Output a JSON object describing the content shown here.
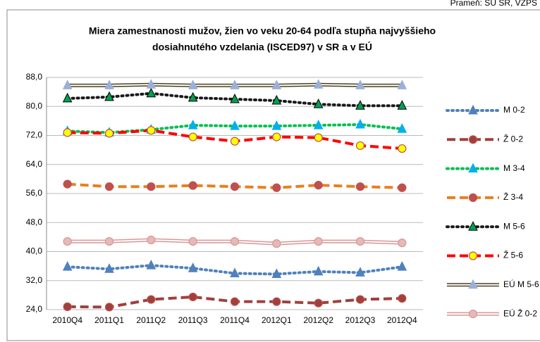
{
  "source": "Prameň: ŠÚ SR, VZPS",
  "chart_data": {
    "type": "line",
    "title": [
      "Miera zamestnanosti  mužov, žien vo veku 20-64  podľa stupňa  najvyššieho",
      "dosiahnutého vzdelania  (ISCED97)  v SR a v EÚ"
    ],
    "categories": [
      "2010Q4",
      "2011Q1",
      "2011Q2",
      "2011Q3",
      "2011Q4",
      "2012Q1",
      "2012Q2",
      "2012Q3",
      "2012Q4"
    ],
    "ylim": [
      24,
      88
    ],
    "yticks": [
      {
        "value": 24,
        "label": "24,0"
      },
      {
        "value": 32,
        "label": "32,0"
      },
      {
        "value": 40,
        "label": "40,0"
      },
      {
        "value": 48,
        "label": "48,0"
      },
      {
        "value": 56,
        "label": "56,0"
      },
      {
        "value": 64,
        "label": "64,0"
      },
      {
        "value": 72,
        "label": "72,0"
      },
      {
        "value": 80,
        "label": "80,0"
      },
      {
        "value": 88,
        "label": "88,0"
      }
    ],
    "grid": true,
    "legend": "right",
    "series": [
      {
        "name": "M 0-2",
        "color": "#4f81bd",
        "line_style": "dotted",
        "marker": "triangle",
        "marker_color": "#4f81bd",
        "values": [
          35.8,
          35.2,
          36.2,
          35.4,
          34.0,
          33.8,
          34.5,
          34.2,
          35.8
        ]
      },
      {
        "name": "Ž 0-2",
        "color": "#a0403c",
        "line_style": "dashed",
        "marker": "circle",
        "marker_color": "#a0403c",
        "values": [
          24.8,
          24.7,
          26.8,
          27.5,
          26.2,
          26.2,
          25.8,
          26.8,
          27.1
        ]
      },
      {
        "name": "M 3-4",
        "color": "#00c050",
        "line_style": "dotted",
        "marker": "triangle",
        "marker_color": "#00b0f0",
        "values": [
          73.2,
          72.8,
          73.6,
          74.8,
          74.6,
          74.6,
          74.8,
          75.0,
          73.8
        ]
      },
      {
        "name": "Ž 3-4",
        "color": "#e8801e",
        "line_style": "dashed",
        "marker": "circle",
        "marker_color": "#c0504d",
        "values": [
          58.6,
          57.9,
          57.9,
          58.2,
          57.9,
          57.6,
          58.3,
          57.9,
          57.6
        ]
      },
      {
        "name": "M 5-6",
        "color": "#1a1a1a",
        "line_style": "dotted",
        "marker": "triangle",
        "marker_color": "#00a050",
        "values": [
          82.2,
          82.6,
          83.6,
          82.4,
          82.0,
          81.6,
          80.6,
          80.2,
          80.2
        ]
      },
      {
        "name": "Ž 5-6",
        "color": "#ff0000",
        "line_style": "dashed",
        "marker": "circle",
        "marker_color": "#ffff00",
        "values": [
          72.8,
          72.6,
          73.4,
          71.6,
          70.4,
          71.6,
          71.4,
          69.2,
          68.4
        ]
      },
      {
        "name": "EÚ M 5-6",
        "color": "#4a4020",
        "line_style": "double",
        "marker": "triangle",
        "marker_color": "#9bb0d8",
        "values": [
          85.8,
          85.8,
          86.0,
          85.8,
          85.8,
          85.8,
          86.0,
          85.8,
          85.8
        ]
      },
      {
        "name": "EÚ Ž 0-2",
        "color": "#d99594",
        "line_style": "double",
        "marker": "circle",
        "marker_color": "#e6b9b8",
        "values": [
          42.8,
          42.8,
          43.2,
          42.8,
          42.8,
          42.2,
          42.8,
          42.8,
          42.4
        ]
      }
    ]
  }
}
